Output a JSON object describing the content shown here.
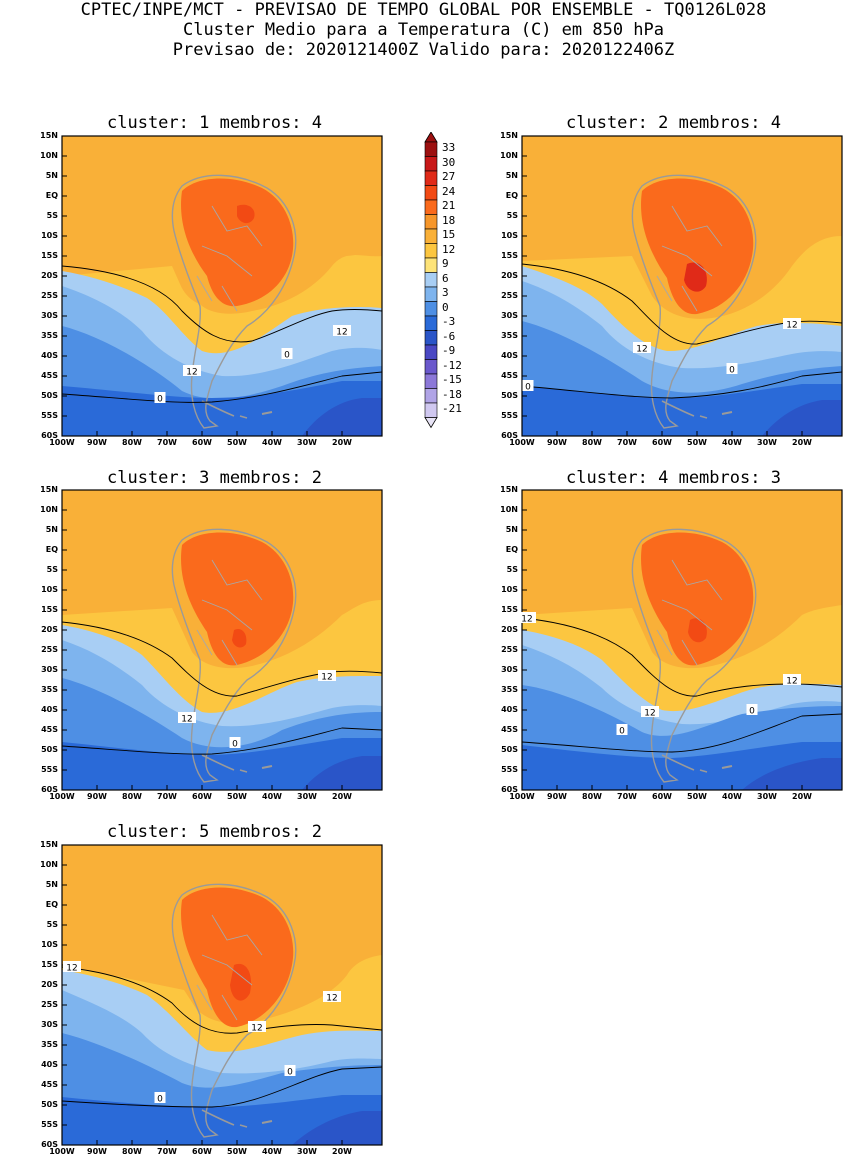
{
  "header": {
    "line1": "CPTEC/INPE/MCT - PREVISAO DE TEMPO GLOBAL POR ENSEMBLE - TQ0126L028",
    "line2": "Cluster Medio para a Temperatura (C) em 850 hPa",
    "line3": "Previsao de: 2020121400Z   Valido para: 2020122406Z"
  },
  "axes": {
    "lat_labels": [
      "15N",
      "10N",
      "5N",
      "EQ",
      "5S",
      "10S",
      "15S",
      "20S",
      "25S",
      "30S",
      "35S",
      "40S",
      "45S",
      "50S",
      "55S",
      "60S"
    ],
    "lon_labels": [
      "100W",
      "90W",
      "80W",
      "70W",
      "60W",
      "50W",
      "40W",
      "30W",
      "20W"
    ]
  },
  "colorbar": {
    "labels": [
      "33",
      "30",
      "27",
      "24",
      "21",
      "18",
      "15",
      "12",
      "9",
      "6",
      "3",
      "0",
      "-3",
      "-6",
      "-9",
      "-12",
      "-15",
      "-18",
      "-21"
    ],
    "colors": [
      "#9c1010",
      "#c81818",
      "#e02a18",
      "#f24a14",
      "#fa6a1c",
      "#f6962a",
      "#f9b038",
      "#fcc640",
      "#fde378",
      "#a8cef4",
      "#7eb4ee",
      "#4e8fe4",
      "#2a6ad8",
      "#2a55c8",
      "#4a48c4",
      "#6a58cc",
      "#8c78d8",
      "#b0a4e6",
      "#d0c8f0"
    ]
  },
  "clusters": [
    {
      "title": "cluster: 1   membros: 4",
      "contour_labels": [
        "12",
        "12",
        "0",
        "0"
      ]
    },
    {
      "title": "cluster: 2   membros: 4",
      "contour_labels": [
        "12",
        "12",
        "0",
        "0"
      ]
    },
    {
      "title": "cluster: 3   membros: 2",
      "contour_labels": [
        "12",
        "12",
        "0"
      ]
    },
    {
      "title": "cluster: 4   membros: 3",
      "contour_labels": [
        "12",
        "12",
        "12",
        "0",
        "0"
      ]
    },
    {
      "title": "cluster: 5   membros: 2",
      "contour_labels": [
        "12",
        "12",
        "12",
        "0",
        "0"
      ]
    }
  ]
}
